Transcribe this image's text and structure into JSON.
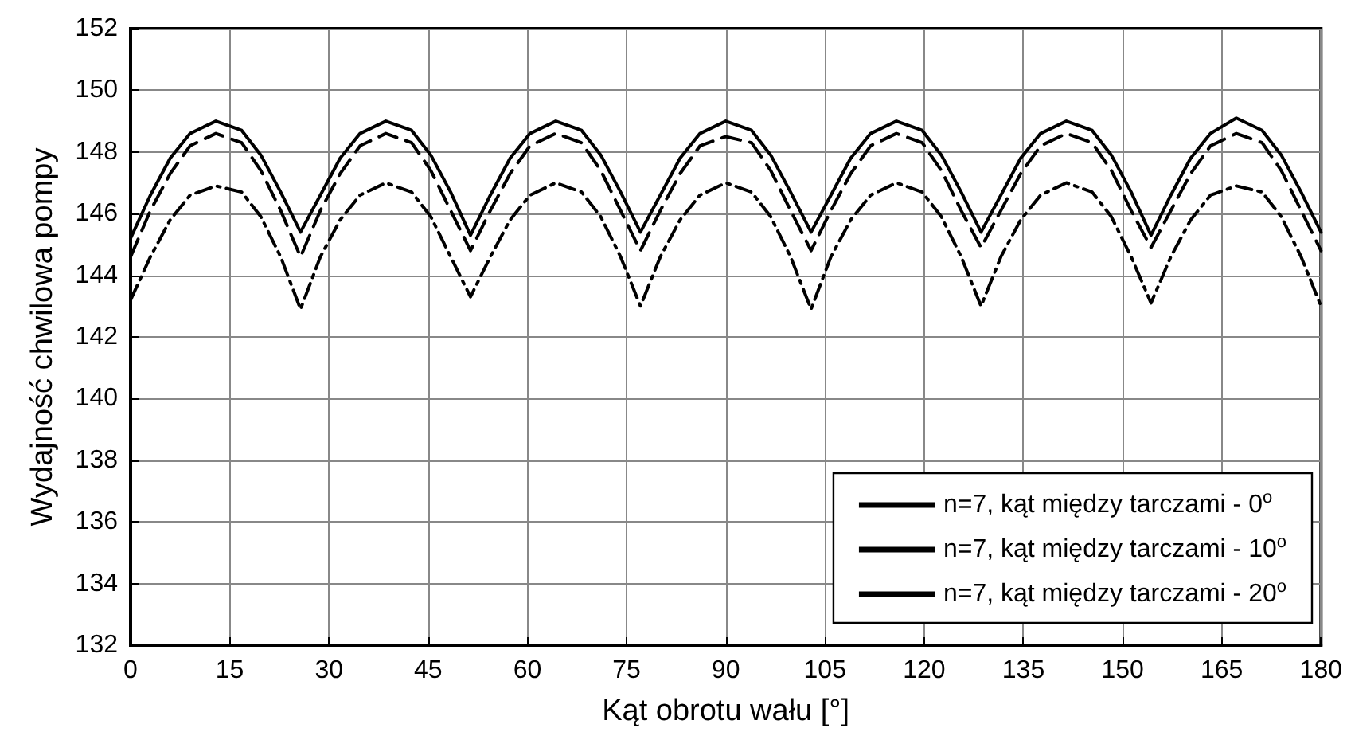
{
  "chart_data": {
    "type": "line",
    "xlabel": "Kąt obrotu wału [°]",
    "ylabel": "Wydajność chwilowa pompy",
    "x": [
      0,
      3,
      6,
      9,
      12.9,
      16.8,
      19.7,
      22.7,
      25.7,
      28.7,
      31.7,
      34.7,
      38.6,
      42.5,
      45.4,
      48.4,
      51.4,
      54.4,
      57.4,
      60.4,
      64.3,
      68.2,
      71.1,
      74.1,
      77.1,
      80.1,
      83.1,
      86.1,
      90,
      93.9,
      96.8,
      99.8,
      102.9,
      105.9,
      108.9,
      111.9,
      115.8,
      119.7,
      122.6,
      125.6,
      128.6,
      131.6,
      134.6,
      137.6,
      141.5,
      145.4,
      148.3,
      151.3,
      154.3,
      157.3,
      160.3,
      163.3,
      167.2,
      171.1,
      174,
      177,
      180
    ],
    "series": [
      {
        "name": "n=7, kąt między tarczami - 0$^{o}$",
        "color": "#000000",
        "line_style": "solid",
        "values": [
          145.2,
          146.6,
          147.8,
          148.6,
          149.0,
          148.7,
          147.9,
          146.7,
          145.4,
          146.6,
          147.8,
          148.6,
          149.0,
          148.7,
          147.9,
          146.7,
          145.3,
          146.6,
          147.8,
          148.6,
          149.0,
          148.7,
          147.9,
          146.7,
          145.4,
          146.6,
          147.8,
          148.6,
          149.0,
          148.7,
          147.9,
          146.7,
          145.4,
          146.6,
          147.8,
          148.6,
          149.0,
          148.7,
          147.9,
          146.7,
          145.4,
          146.6,
          147.8,
          148.6,
          149.0,
          148.7,
          147.9,
          146.7,
          145.3,
          146.6,
          147.8,
          148.6,
          149.1,
          148.7,
          147.9,
          146.7,
          145.4
        ]
      },
      {
        "name": "n=7, kąt między tarczami - 10$^{o}$",
        "color": "#000000",
        "line_style": "dashed",
        "values": [
          144.6,
          146.1,
          147.3,
          148.2,
          148.6,
          148.3,
          147.4,
          146.1,
          144.6,
          146.1,
          147.3,
          148.2,
          148.6,
          148.3,
          147.4,
          146.1,
          144.8,
          146.1,
          147.3,
          148.2,
          148.6,
          148.3,
          147.4,
          146.1,
          144.8,
          146.1,
          147.3,
          148.2,
          148.5,
          148.3,
          147.4,
          146.1,
          144.8,
          146.1,
          147.3,
          148.2,
          148.6,
          148.3,
          147.4,
          146.1,
          144.9,
          146.1,
          147.3,
          148.2,
          148.6,
          148.3,
          147.4,
          146.1,
          144.9,
          146.1,
          147.3,
          148.2,
          148.6,
          148.3,
          147.4,
          146.1,
          144.8
        ]
      },
      {
        "name": "n=7, kąt między tarczami - 20$^{o}$",
        "color": "#000000",
        "line_style": "dashdot",
        "values": [
          143.2,
          144.6,
          145.8,
          146.6,
          146.9,
          146.7,
          145.9,
          144.6,
          142.9,
          144.6,
          145.8,
          146.6,
          147.0,
          146.7,
          145.9,
          144.6,
          143.3,
          144.6,
          145.8,
          146.6,
          147.0,
          146.7,
          145.9,
          144.6,
          143.0,
          144.6,
          145.8,
          146.6,
          147.0,
          146.7,
          145.9,
          144.6,
          142.9,
          144.6,
          145.8,
          146.6,
          147.0,
          146.7,
          145.9,
          144.6,
          143.0,
          144.6,
          145.8,
          146.6,
          147.0,
          146.7,
          145.9,
          144.6,
          143.1,
          144.6,
          145.8,
          146.6,
          146.9,
          146.7,
          145.9,
          144.6,
          143.0
        ]
      }
    ],
    "xlim": [
      0,
      180
    ],
    "xticks": [
      0,
      15,
      30,
      45,
      60,
      75,
      90,
      105,
      120,
      135,
      150,
      165,
      180
    ],
    "ylim": [
      132,
      152
    ],
    "yticks": [
      132,
      134,
      136,
      138,
      140,
      142,
      144,
      146,
      148,
      150,
      152
    ],
    "grid": true,
    "legend": "bottom right",
    "marker": "none"
  }
}
